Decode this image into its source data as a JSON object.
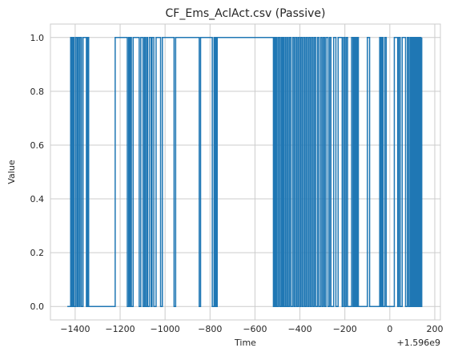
{
  "chart_data": {
    "type": "line",
    "drawstyle": "steps-post",
    "title": "CF_Ems_AclAct.csv (Passive)",
    "xlabel": "Time",
    "ylabel": "Value",
    "x_offset_label": "+1.596e9",
    "xlim": [
      -1510,
      225
    ],
    "ylim": [
      -0.05,
      1.05
    ],
    "grid": true,
    "x_ticks": [
      -1400,
      -1200,
      -1000,
      -800,
      -600,
      -400,
      -200,
      0,
      200
    ],
    "x_tick_labels": [
      "−1400",
      "−1200",
      "−1000",
      "−800",
      "−600",
      "−400",
      "−200",
      "0",
      "200"
    ],
    "y_ticks": [
      0.0,
      0.2,
      0.4,
      0.6,
      0.8,
      1.0
    ],
    "y_tick_labels": [
      "0.0",
      "0.2",
      "0.4",
      "0.6",
      "0.8",
      "1.0"
    ],
    "series": [
      {
        "color": "#1f77b4",
        "x": [
          -1435,
          -1420,
          -1415,
          -1410,
          -1405,
          -1398,
          -1392,
          -1388,
          -1382,
          -1378,
          -1372,
          -1365,
          -1350,
          -1345,
          -1340,
          -1222,
          -1168,
          -1162,
          -1158,
          -1154,
          -1150,
          -1142,
          -1115,
          -1108,
          -1098,
          -1092,
          -1088,
          -1082,
          -1078,
          -1070,
          -1062,
          -1058,
          -1050,
          -1040,
          -1020,
          -1012,
          -960,
          -953,
          -848,
          -842,
          -790,
          -782,
          -780,
          -776,
          -772,
          -768,
          -762,
          -518,
          -514,
          -510,
          -506,
          -502,
          -496,
          -490,
          -484,
          -480,
          -476,
          -472,
          -466,
          -462,
          -456,
          -452,
          -446,
          -440,
          -432,
          -426,
          -420,
          -414,
          -408,
          -402,
          -396,
          -390,
          -384,
          -378,
          -372,
          -366,
          -360,
          -354,
          -348,
          -342,
          -336,
          -330,
          -322,
          -316,
          -308,
          -302,
          -296,
          -290,
          -284,
          -275,
          -268,
          -262,
          -250,
          -240,
          -230,
          -212,
          -206,
          -200,
          -194,
          -188,
          -170,
          -164,
          -160,
          -156,
          -152,
          -148,
          -144,
          -140,
          -100,
          -90,
          -45,
          -40,
          -35,
          -30,
          -22,
          -16,
          20,
          35,
          40,
          46,
          55,
          70,
          78,
          84,
          90,
          95,
          100,
          103,
          106,
          109,
          112,
          115,
          118,
          122,
          126,
          130,
          134,
          138,
          142
        ],
        "y": [
          0,
          1,
          0,
          1,
          0,
          1,
          0,
          1,
          0,
          1,
          0,
          1,
          0,
          1,
          0,
          1,
          0,
          1,
          0,
          1,
          0,
          1,
          0,
          1,
          0,
          1,
          0,
          1,
          0,
          1,
          0,
          1,
          0,
          1,
          0,
          1,
          0,
          1,
          0,
          1,
          0,
          1,
          0,
          1,
          0,
          1,
          1,
          0,
          1,
          0,
          1,
          0,
          1,
          0,
          1,
          0,
          1,
          0,
          1,
          0,
          1,
          0,
          1,
          0,
          1,
          0,
          1,
          0,
          1,
          0,
          1,
          0,
          1,
          0,
          1,
          0,
          1,
          0,
          1,
          0,
          1,
          0,
          1,
          0,
          1,
          0,
          1,
          0,
          1,
          0,
          1,
          0,
          1,
          0,
          1,
          0,
          1,
          0,
          1,
          0,
          1,
          0,
          1,
          0,
          1,
          0,
          1,
          0,
          1,
          0,
          1,
          0,
          1,
          0,
          1,
          0,
          1,
          0,
          1,
          0,
          1,
          0,
          1,
          0,
          1,
          0,
          1,
          0,
          1,
          0,
          1,
          0,
          1,
          0,
          1,
          0,
          1,
          0,
          1
        ]
      }
    ]
  }
}
